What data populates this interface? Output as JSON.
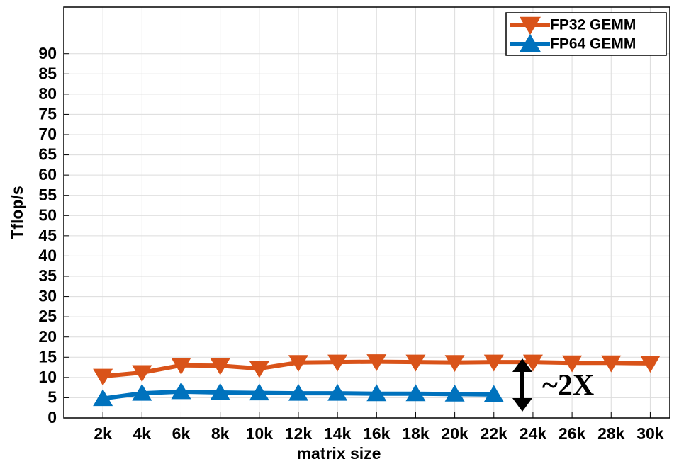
{
  "chart_data": {
    "type": "line",
    "x_label": "matrix size",
    "y_label": "Tflop/s",
    "annotation": "~2X",
    "x": [
      2,
      4,
      6,
      8,
      10,
      12,
      14,
      16,
      18,
      20,
      22,
      24,
      26,
      28,
      30
    ],
    "series": [
      {
        "name": "FP32 GEMM",
        "color": "#d95319",
        "marker": "triangle-down",
        "values": [
          10.3,
          11.2,
          13,
          12.9,
          12.2,
          13.7,
          13.8,
          13.9,
          13.8,
          13.7,
          13.8,
          13.8,
          13.6,
          13.6,
          13.5
        ]
      },
      {
        "name": "FP64 GEMM",
        "color": "#0072bd",
        "marker": "triangle-up",
        "values": [
          4.8,
          6.1,
          6.5,
          6.3,
          6.2,
          6.1,
          6.1,
          6.0,
          6.0,
          5.9,
          5.8,
          null,
          null,
          null,
          null
        ]
      }
    ],
    "xlim": [
      0,
      31
    ],
    "xticks": [
      {
        "value": 2,
        "label": "2k"
      },
      {
        "value": 4,
        "label": "4k"
      },
      {
        "value": 6,
        "label": "6k"
      },
      {
        "value": 8,
        "label": "8k"
      },
      {
        "value": 10,
        "label": "10k"
      },
      {
        "value": 12,
        "label": "12k"
      },
      {
        "value": 14,
        "label": "14k"
      },
      {
        "value": 16,
        "label": "16k"
      },
      {
        "value": 18,
        "label": "18k"
      },
      {
        "value": 20,
        "label": "20k"
      },
      {
        "value": 22,
        "label": "22k"
      },
      {
        "value": 24,
        "label": "24k"
      },
      {
        "value": 26,
        "label": "26k"
      },
      {
        "value": 28,
        "label": "28k"
      },
      {
        "value": 30,
        "label": "30k"
      }
    ],
    "ylim": [
      0,
      101.5
    ],
    "yticks": [
      0,
      5,
      10,
      15,
      20,
      25,
      30,
      35,
      40,
      45,
      50,
      55,
      60,
      65,
      70,
      75,
      80,
      85,
      90
    ],
    "grid": true,
    "legend": "top-right"
  }
}
